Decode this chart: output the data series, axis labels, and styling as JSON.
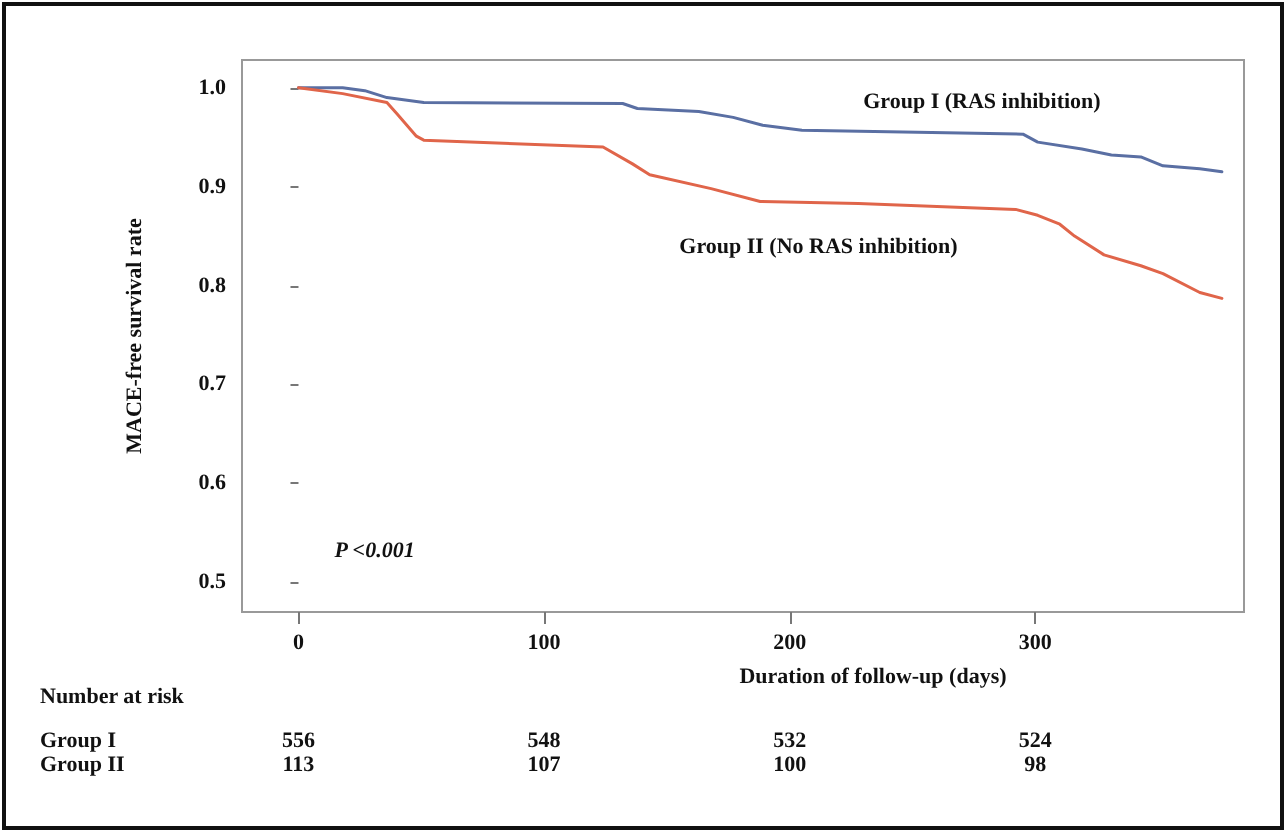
{
  "chart_data": {
    "type": "line",
    "xlabel": "Duration of follow-up (days)",
    "ylabel": "MACE-free survival rate",
    "xlim": [
      -23,
      385
    ],
    "xticks": [
      0,
      100,
      200,
      300
    ],
    "ylim": [
      0.47,
      1.028
    ],
    "yticks": [
      {
        "value": 0.5,
        "label": "0.5"
      },
      {
        "value": 0.6,
        "label": "0.6"
      },
      {
        "value": 0.7,
        "label": "0.7"
      },
      {
        "value": 0.8,
        "label": "0.8"
      },
      {
        "value": 0.9,
        "label": "0.9"
      },
      {
        "value": 1,
        "label": "1.0"
      }
    ],
    "grid": false,
    "legend": false,
    "marker": "none",
    "line_style": "solid",
    "series": [
      {
        "name": "Group I (RAS inhibition)",
        "color": "#5a6fa3",
        "x": [
          0,
          18,
          27,
          36,
          51,
          132,
          138,
          163,
          177,
          189,
          205,
          295,
          301,
          319,
          331,
          343,
          352,
          367,
          376
        ],
        "values": [
          1.0,
          1.0,
          0.997,
          0.99,
          0.985,
          0.984,
          0.979,
          0.976,
          0.97,
          0.962,
          0.957,
          0.953,
          0.945,
          0.938,
          0.932,
          0.93,
          0.921,
          0.918,
          0.915
        ]
      },
      {
        "name": "Group II (No RAS inhibition)",
        "color": "#e0654a",
        "x": [
          0,
          18,
          36,
          40,
          48,
          51,
          124,
          136,
          143,
          168,
          188,
          228,
          292,
          301,
          310,
          316,
          328,
          343,
          352,
          367,
          376
        ],
        "values": [
          1.0,
          0.994,
          0.985,
          0.974,
          0.951,
          0.947,
          0.94,
          0.923,
          0.912,
          0.898,
          0.885,
          0.883,
          0.877,
          0.871,
          0.862,
          0.85,
          0.831,
          0.82,
          0.812,
          0.793,
          0.787
        ]
      }
    ],
    "annotations": [
      "P <0.001",
      "Number at risk",
      "Group I",
      "556",
      "548",
      "532",
      "524",
      "Group II",
      "113",
      "107",
      "100",
      "98"
    ]
  }
}
